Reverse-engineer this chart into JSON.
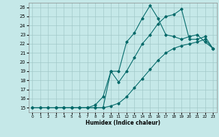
{
  "xlabel": "Humidex (Indice chaleur)",
  "bg_color": "#c5e8e8",
  "grid_color": "#a0c8c8",
  "line_color": "#006868",
  "xlim": [
    -0.5,
    23.5
  ],
  "ylim": [
    14.5,
    26.5
  ],
  "xticks": [
    0,
    1,
    2,
    3,
    4,
    5,
    6,
    7,
    8,
    9,
    10,
    11,
    12,
    13,
    14,
    15,
    16,
    17,
    18,
    19,
    20,
    21,
    22,
    23
  ],
  "yticks": [
    15,
    16,
    17,
    18,
    19,
    20,
    21,
    22,
    23,
    24,
    25,
    26
  ],
  "line1_x": [
    0,
    1,
    2,
    3,
    4,
    5,
    6,
    7,
    8,
    9,
    10,
    11,
    12,
    13,
    14,
    15,
    16,
    17,
    18,
    19,
    20,
    21,
    22,
    23
  ],
  "line1_y": [
    15,
    15,
    15,
    15,
    15,
    15,
    15,
    15,
    15.3,
    16.2,
    19.0,
    19.0,
    22.2,
    23.2,
    24.8,
    26.2,
    24.8,
    23.0,
    22.8,
    22.5,
    22.8,
    23.0,
    22.2,
    21.5
  ],
  "line2_x": [
    3,
    4,
    5,
    6,
    7,
    8,
    9,
    10,
    11,
    12,
    13,
    14,
    15,
    16,
    17,
    18,
    19,
    20,
    21,
    22,
    23
  ],
  "line2_y": [
    15,
    15,
    15,
    15,
    15,
    15,
    15,
    19.0,
    17.8,
    19.0,
    20.5,
    22.0,
    23.0,
    24.2,
    25.0,
    25.2,
    25.8,
    22.5,
    22.5,
    22.8,
    21.5
  ],
  "line3_x": [
    0,
    1,
    2,
    3,
    4,
    5,
    6,
    7,
    8,
    9,
    10,
    11,
    12,
    13,
    14,
    15,
    16,
    17,
    18,
    19,
    20,
    21,
    22,
    23
  ],
  "line3_y": [
    15,
    15,
    15,
    15,
    15,
    15,
    15,
    15,
    15,
    15,
    15.2,
    15.5,
    16.2,
    17.2,
    18.2,
    19.2,
    20.2,
    21.0,
    21.5,
    21.8,
    22.0,
    22.2,
    22.5,
    21.5
  ]
}
